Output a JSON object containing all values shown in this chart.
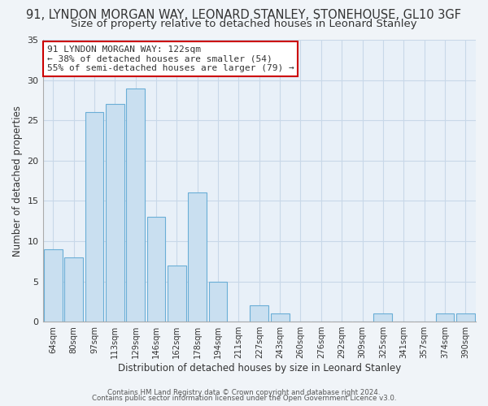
{
  "title": "91, LYNDON MORGAN WAY, LEONARD STANLEY, STONEHOUSE, GL10 3GF",
  "subtitle": "Size of property relative to detached houses in Leonard Stanley",
  "xlabel": "Distribution of detached houses by size in Leonard Stanley",
  "ylabel": "Number of detached properties",
  "bar_labels": [
    "64sqm",
    "80sqm",
    "97sqm",
    "113sqm",
    "129sqm",
    "146sqm",
    "162sqm",
    "178sqm",
    "194sqm",
    "211sqm",
    "227sqm",
    "243sqm",
    "260sqm",
    "276sqm",
    "292sqm",
    "309sqm",
    "325sqm",
    "341sqm",
    "357sqm",
    "374sqm",
    "390sqm"
  ],
  "bar_values": [
    9,
    8,
    26,
    27,
    29,
    13,
    7,
    16,
    5,
    0,
    2,
    1,
    0,
    0,
    0,
    0,
    1,
    0,
    0,
    1,
    1
  ],
  "bar_color": "#c9dff0",
  "bar_edge_color": "#6aaed6",
  "ylim": [
    0,
    35
  ],
  "yticks": [
    0,
    5,
    10,
    15,
    20,
    25,
    30,
    35
  ],
  "annotation_title": "91 LYNDON MORGAN WAY: 122sqm",
  "annotation_line2": "← 38% of detached houses are smaller (54)",
  "annotation_line3": "55% of semi-detached houses are larger (79) →",
  "annotation_box_color": "#ffffff",
  "annotation_box_edge_color": "#cc0000",
  "footer_line1": "Contains HM Land Registry data © Crown copyright and database right 2024.",
  "footer_line2": "Contains public sector information licensed under the Open Government Licence v3.0.",
  "bg_color": "#f0f4f8",
  "plot_bg_color": "#e8f0f8",
  "grid_color": "#c8d8e8",
  "title_fontsize": 10.5,
  "subtitle_fontsize": 9.5,
  "figwidth": 6.0,
  "figheight": 5.0,
  "dpi": 100
}
